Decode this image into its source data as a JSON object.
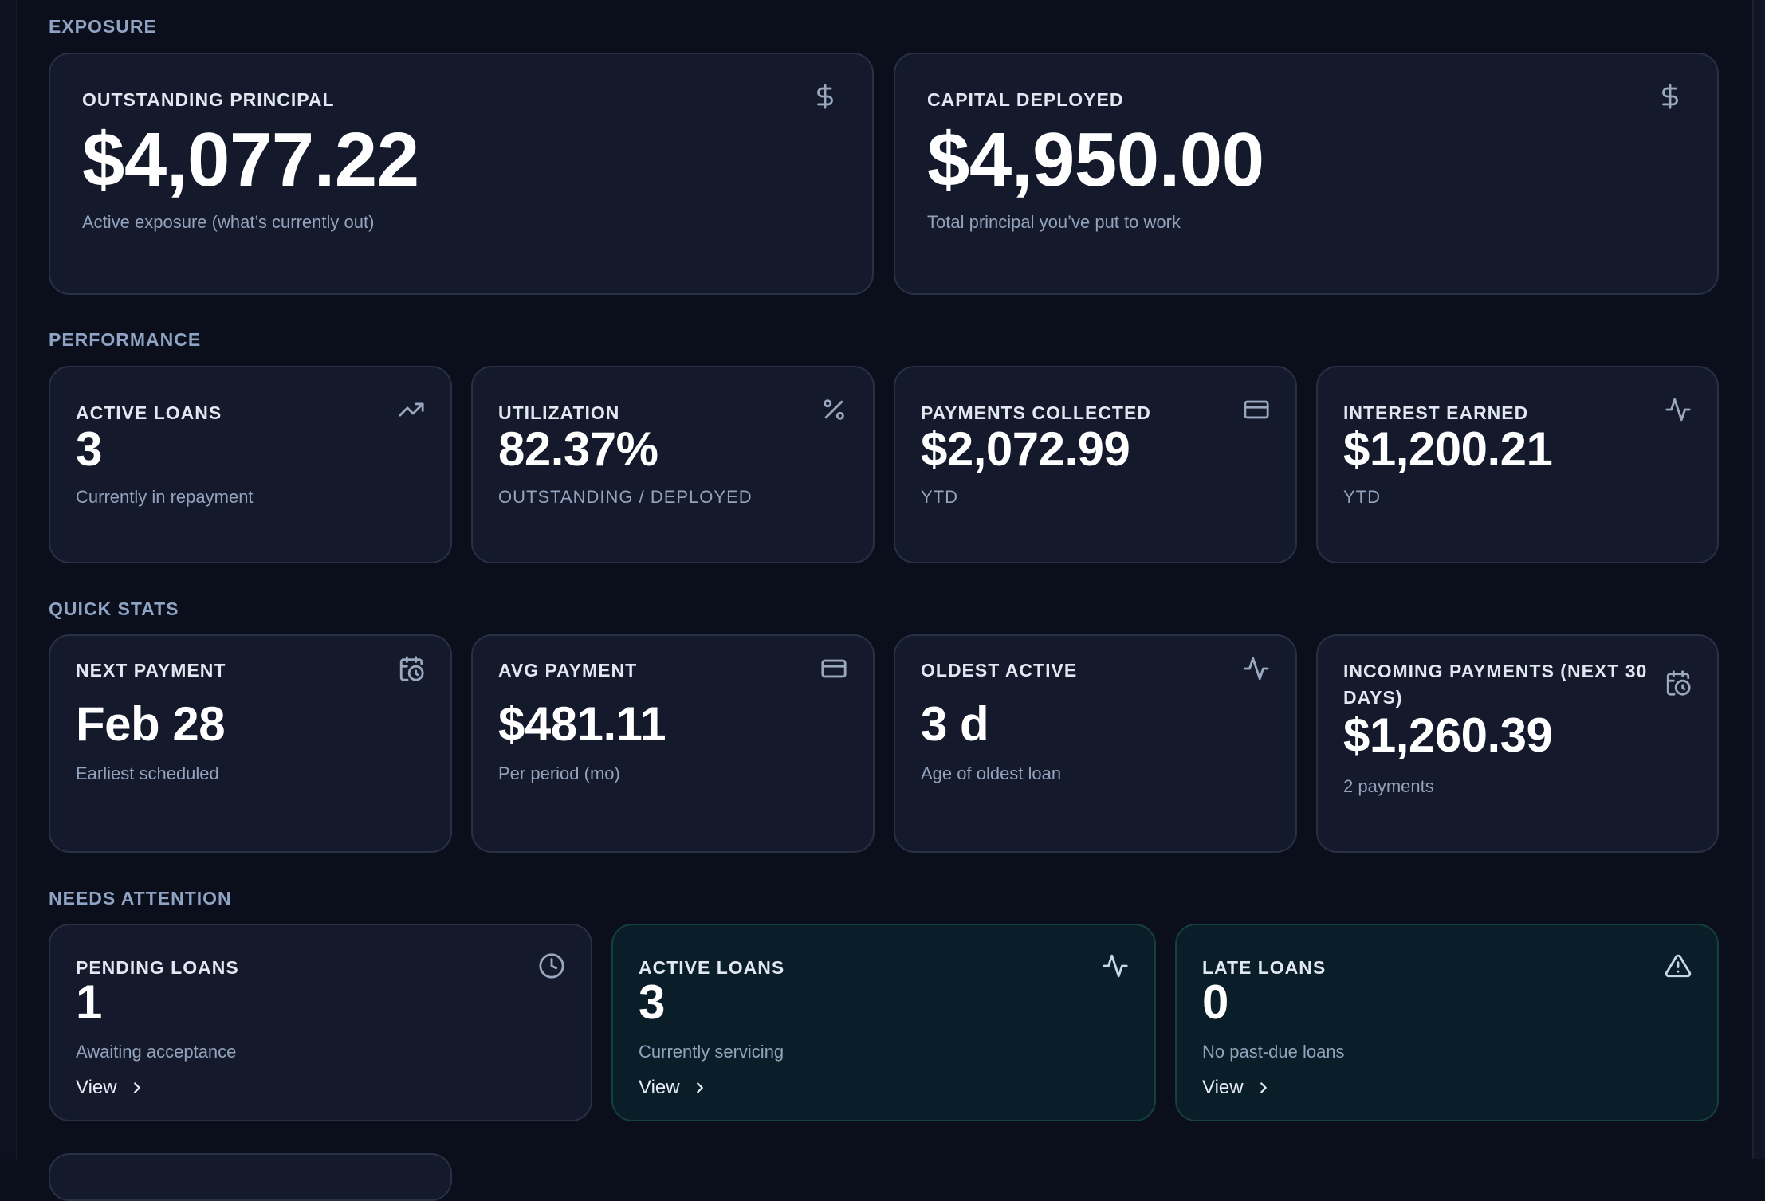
{
  "sections": {
    "exposure": "EXPOSURE",
    "performance": "PERFORMANCE",
    "quick_stats": "QUICK STATS",
    "needs_attention": "NEEDS ATTENTION"
  },
  "exposure": {
    "outstanding": {
      "label": "OUTSTANDING PRINCIPAL",
      "value": "$4,077.22",
      "sub": "Active exposure (what’s currently out)",
      "icon": "dollar-icon"
    },
    "deployed": {
      "label": "CAPITAL DEPLOYED",
      "value": "$4,950.00",
      "sub": "Total principal you’ve put to work",
      "icon": "dollar-icon"
    }
  },
  "performance": {
    "active_loans": {
      "label": "ACTIVE LOANS",
      "value": "3",
      "sub": "Currently in repayment",
      "icon": "trending-up-icon"
    },
    "utilization": {
      "label": "UTILIZATION",
      "value": "82.37%",
      "sub": "OUTSTANDING / DEPLOYED",
      "icon": "percent-icon"
    },
    "payments_collected": {
      "label": "PAYMENTS COLLECTED",
      "value": "$2,072.99",
      "sub": "YTD",
      "icon": "credit-card-icon"
    },
    "interest_earned": {
      "label": "INTEREST EARNED",
      "value": "$1,200.21",
      "sub": "YTD",
      "icon": "activity-icon"
    }
  },
  "quick_stats": {
    "next_payment": {
      "label": "NEXT PAYMENT",
      "value": "Feb 28",
      "sub": "Earliest scheduled",
      "icon": "calendar-clock-icon"
    },
    "avg_payment": {
      "label": "AVG PAYMENT",
      "value": "$481.11",
      "sub": "Per period (mo)",
      "icon": "credit-card-icon"
    },
    "oldest_active": {
      "label": "OLDEST ACTIVE",
      "value": "3 d",
      "sub": "Age of oldest loan",
      "icon": "activity-icon"
    },
    "incoming": {
      "label_line1": "INCOMING PAYMENTS (NEXT 30",
      "label_line2": "DAYS)",
      "value": "$1,260.39",
      "sub": "2 payments",
      "icon": "calendar-clock-icon"
    }
  },
  "needs_attention": {
    "pending": {
      "label": "PENDING LOANS",
      "value": "1",
      "sub": "Awaiting acceptance",
      "link": "View",
      "icon": "clock-icon"
    },
    "active": {
      "label": "ACTIVE LOANS",
      "value": "3",
      "sub": "Currently servicing",
      "link": "View",
      "icon": "activity-icon"
    },
    "late": {
      "label": "LATE LOANS",
      "value": "0",
      "sub": "No past-due loans",
      "link": "View",
      "icon": "alert-triangle-icon"
    }
  }
}
